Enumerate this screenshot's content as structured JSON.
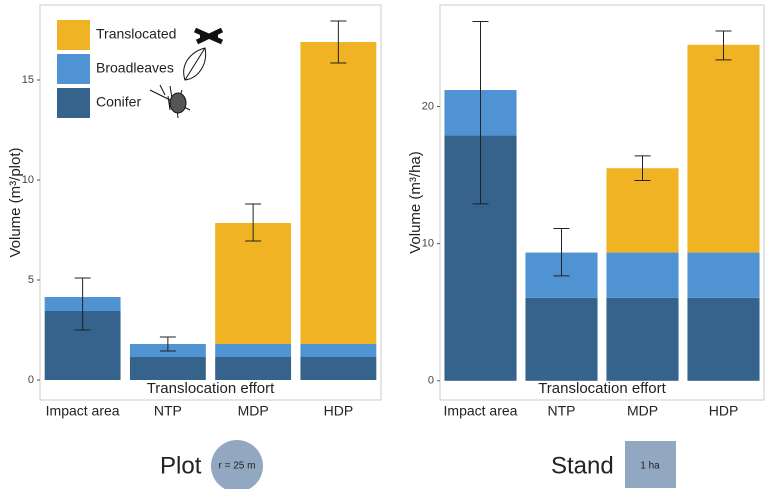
{
  "chart_data": [
    {
      "type": "bar",
      "stacked": true,
      "ylabel": "Volume (m³/plot)",
      "xlabel": "Translocation effort",
      "categories": [
        "Impact area",
        "NTP",
        "MDP",
        "HDP"
      ],
      "series": [
        {
          "name": "Conifer",
          "color": "#35638c",
          "values": [
            3.45,
            1.15,
            1.15,
            1.15
          ]
        },
        {
          "name": "Broadleaves",
          "color": "#4f93d2",
          "values": [
            0.7,
            0.65,
            0.65,
            0.65
          ]
        },
        {
          "name": "Translocated",
          "color": "#efb324",
          "values": [
            0,
            0,
            6.05,
            15.1
          ]
        }
      ],
      "error_low": [
        2.5,
        1.45,
        6.95,
        15.85
      ],
      "error_high": [
        5.1,
        2.15,
        8.8,
        17.95
      ],
      "ylim": [
        -1,
        18.75
      ],
      "yticks": [
        0,
        5,
        10,
        15
      ],
      "legend": "top-left"
    },
    {
      "type": "bar",
      "stacked": true,
      "ylabel": "Volume (m³/ha)",
      "xlabel": "Translocation effort",
      "categories": [
        "Impact area",
        "NTP",
        "MDP",
        "HDP"
      ],
      "series": [
        {
          "name": "Conifer",
          "color": "#35638c",
          "values": [
            17.9,
            6.05,
            6.05,
            6.05
          ]
        },
        {
          "name": "Broadleaves",
          "color": "#4f93d2",
          "values": [
            3.3,
            3.3,
            3.3,
            3.3
          ]
        },
        {
          "name": "Translocated",
          "color": "#efb324",
          "values": [
            0,
            0,
            6.15,
            15.15
          ]
        }
      ],
      "error_low": [
        12.9,
        7.65,
        14.6,
        23.4
      ],
      "error_high": [
        26.2,
        11.1,
        16.4,
        25.5
      ],
      "ylim": [
        -1.4,
        27.4
      ],
      "yticks": [
        0,
        10,
        20
      ]
    }
  ],
  "captions": [
    {
      "text": "Plot",
      "label": "r = 25 m"
    },
    {
      "text": "Stand",
      "label": "1 ha"
    }
  ]
}
